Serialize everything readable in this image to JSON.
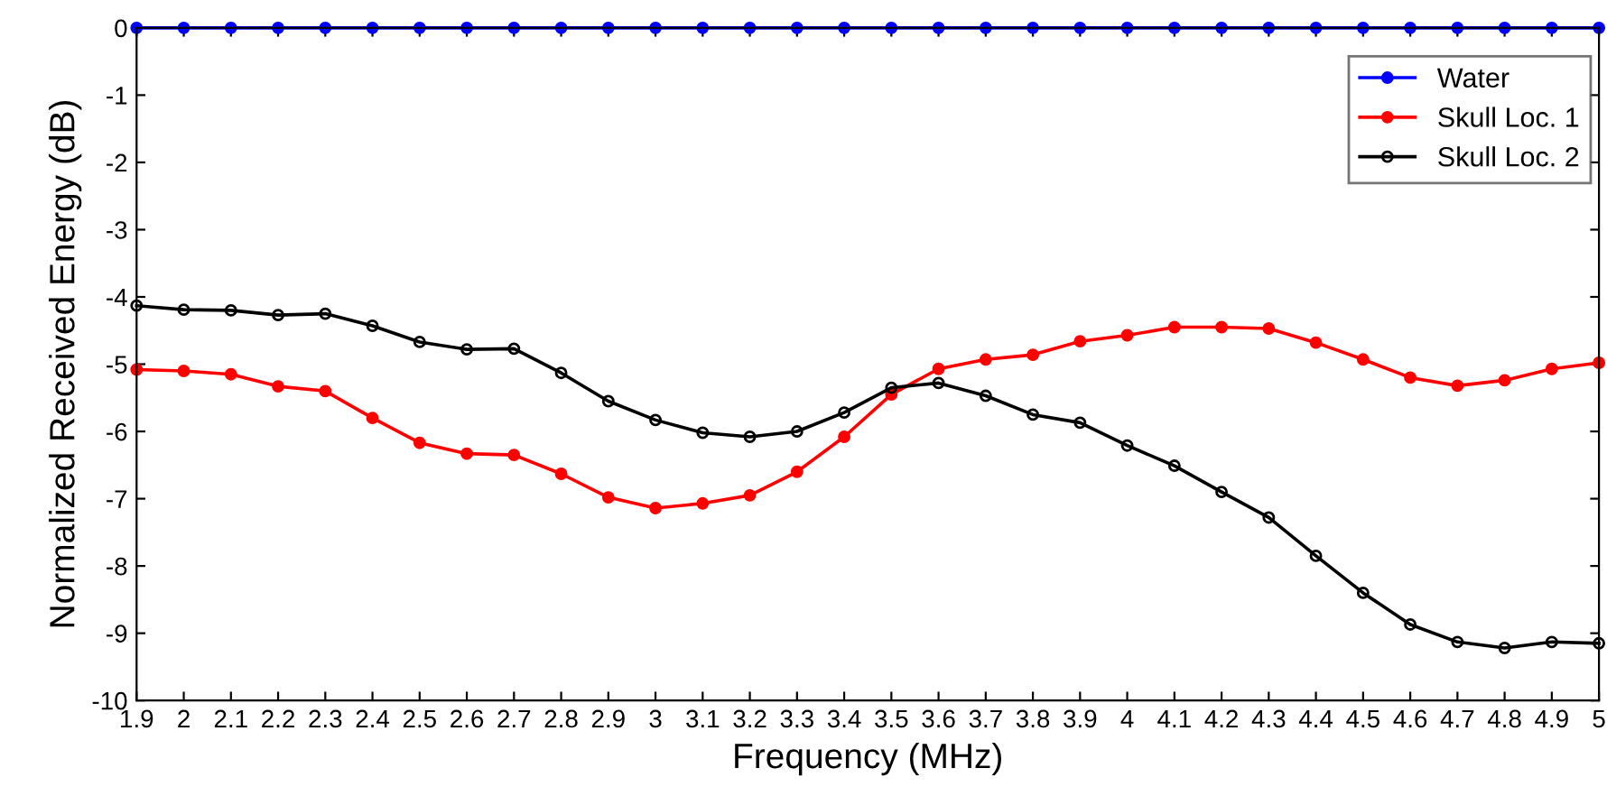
{
  "chart_data": {
    "type": "line",
    "xlabel": "Frequency (MHz)",
    "ylabel": "Normalized Received Energy (dB)",
    "x": [
      1.9,
      2,
      2.1,
      2.2,
      2.3,
      2.4,
      2.5,
      2.6,
      2.7,
      2.8,
      2.9,
      3,
      3.1,
      3.2,
      3.3,
      3.4,
      3.5,
      3.6,
      3.7,
      3.8,
      3.9,
      4,
      4.1,
      4.2,
      4.3,
      4.4,
      4.5,
      4.6,
      4.7,
      4.8,
      4.9,
      5
    ],
    "series": [
      {
        "name": "Water",
        "color": "#0000ff",
        "values": [
          0,
          0,
          0,
          0,
          0,
          0,
          0,
          0,
          0,
          0,
          0,
          0,
          0,
          0,
          0,
          0,
          0,
          0,
          0,
          0,
          0,
          0,
          0,
          0,
          0,
          0,
          0,
          0,
          0,
          0,
          0,
          0
        ]
      },
      {
        "name": "Skull Loc. 1",
        "color": "#ff0000",
        "values": [
          -5.08,
          -5.1,
          -5.15,
          -5.33,
          -5.4,
          -5.8,
          -6.17,
          -6.33,
          -6.35,
          -6.63,
          -6.98,
          -7.14,
          -7.07,
          -6.95,
          -6.6,
          -6.08,
          -5.45,
          -5.07,
          -4.93,
          -4.86,
          -4.66,
          -4.57,
          -4.45,
          -4.45,
          -4.47,
          -4.68,
          -4.93,
          -5.2,
          -5.32,
          -5.24,
          -5.07,
          -4.98
        ]
      },
      {
        "name": "Skull Loc. 2",
        "color": "#000000",
        "values": [
          -4.13,
          -4.19,
          -4.2,
          -4.27,
          -4.25,
          -4.43,
          -4.67,
          -4.78,
          -4.77,
          -5.13,
          -5.55,
          -5.83,
          -6.02,
          -6.08,
          -6.0,
          -5.72,
          -5.35,
          -5.28,
          -5.47,
          -5.75,
          -5.87,
          -6.21,
          -6.51,
          -6.9,
          -7.28,
          -7.85,
          -8.4,
          -8.87,
          -9.13,
          -9.22,
          -9.13,
          -9.15
        ]
      }
    ],
    "xlim": [
      1.9,
      5
    ],
    "ylim": [
      -10,
      0
    ],
    "xticks": [
      1.9,
      2,
      2.1,
      2.2,
      2.3,
      2.4,
      2.5,
      2.6,
      2.7,
      2.8,
      2.9,
      3,
      3.1,
      3.2,
      3.3,
      3.4,
      3.5,
      3.6,
      3.7,
      3.8,
      3.9,
      4,
      4.1,
      4.2,
      4.3,
      4.4,
      4.5,
      4.6,
      4.7,
      4.8,
      4.9,
      5
    ],
    "yticks": [
      {
        "value": -10,
        "label": "-10"
      },
      {
        "value": -9,
        "label": "-9"
      },
      {
        "value": -8,
        "label": "-8"
      },
      {
        "value": -7,
        "label": "-7"
      },
      {
        "value": -6,
        "label": "-6"
      },
      {
        "value": -5,
        "label": "-5"
      },
      {
        "value": -4,
        "label": "-4"
      },
      {
        "value": -3,
        "label": "-3"
      },
      {
        "value": -2,
        "label": "-2"
      },
      {
        "value": -1,
        "label": "-1"
      },
      0
    ],
    "legend": "top right",
    "marker": "circle",
    "line_style": "solid",
    "grid": false
  }
}
